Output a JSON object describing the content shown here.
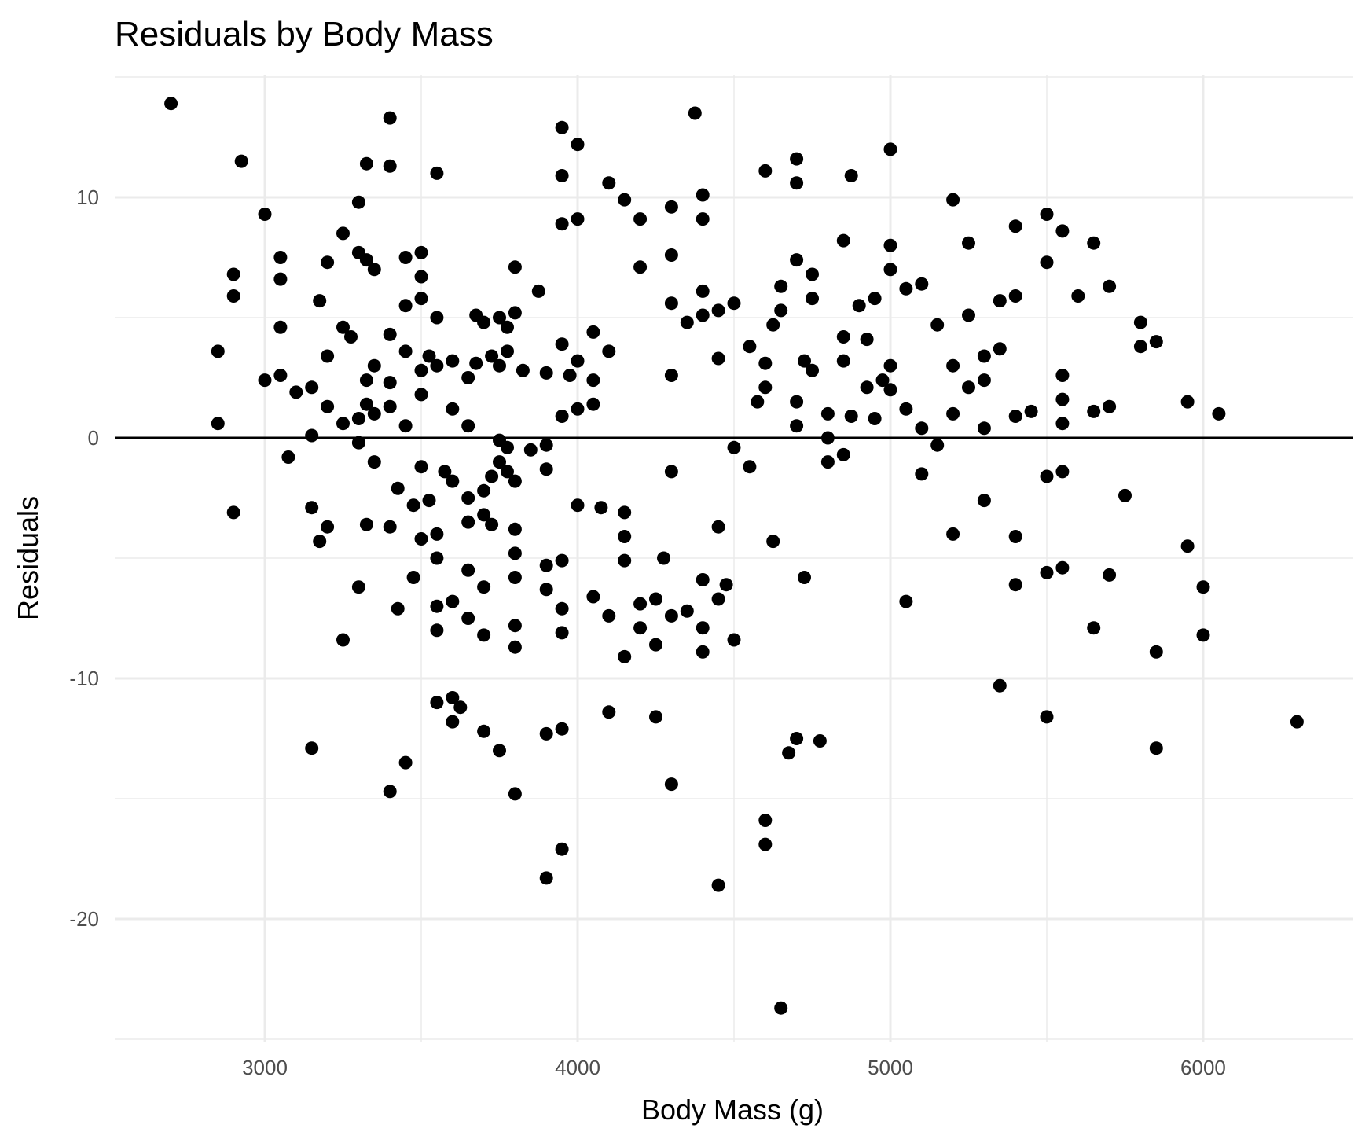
{
  "chart_data": {
    "type": "scatter",
    "title": "Residuals by Body Mass",
    "xlabel": "Body Mass (g)",
    "ylabel": "Residuals",
    "xlim": [
      2520,
      6480
    ],
    "ylim": [
      -25.1,
      15.1
    ],
    "x_ticks": [
      3000,
      4000,
      5000,
      6000
    ],
    "x_tick_labels": [
      "3000",
      "4000",
      "5000",
      "6000"
    ],
    "x_minor_ticks": [
      3500,
      4500,
      5500
    ],
    "y_ticks": [
      -20,
      -10,
      0,
      10
    ],
    "y_tick_labels": [
      "-20",
      "-10",
      "0",
      "10"
    ],
    "y_minor_ticks": [
      -25,
      -15,
      -5,
      5,
      15
    ],
    "grid": true,
    "reference_line_y": 0,
    "points": [
      [
        2700,
        13.9
      ],
      [
        2850,
        3.6
      ],
      [
        2850,
        0.6
      ],
      [
        2900,
        6.8
      ],
      [
        2900,
        5.9
      ],
      [
        2900,
        -3.1
      ],
      [
        2925,
        11.5
      ],
      [
        3000,
        9.3
      ],
      [
        3000,
        2.4
      ],
      [
        3050,
        7.5
      ],
      [
        3050,
        6.6
      ],
      [
        3050,
        4.6
      ],
      [
        3050,
        2.6
      ],
      [
        3075,
        -0.8
      ],
      [
        3100,
        1.9
      ],
      [
        3150,
        2.1
      ],
      [
        3150,
        0.1
      ],
      [
        3150,
        -2.9
      ],
      [
        3150,
        -12.9
      ],
      [
        3175,
        5.7
      ],
      [
        3175,
        -4.3
      ],
      [
        3200,
        7.3
      ],
      [
        3200,
        3.4
      ],
      [
        3200,
        1.3
      ],
      [
        3200,
        -3.7
      ],
      [
        3250,
        8.5
      ],
      [
        3250,
        4.6
      ],
      [
        3250,
        0.6
      ],
      [
        3250,
        -8.4
      ],
      [
        3275,
        4.2
      ],
      [
        3300,
        9.8
      ],
      [
        3300,
        7.7
      ],
      [
        3300,
        0.8
      ],
      [
        3300,
        -0.2
      ],
      [
        3300,
        -6.2
      ],
      [
        3325,
        11.4
      ],
      [
        3325,
        7.4
      ],
      [
        3325,
        2.4
      ],
      [
        3325,
        1.4
      ],
      [
        3325,
        -3.6
      ],
      [
        3350,
        7.0
      ],
      [
        3350,
        3.0
      ],
      [
        3350,
        1.0
      ],
      [
        3350,
        -1.0
      ],
      [
        3400,
        13.3
      ],
      [
        3400,
        11.3
      ],
      [
        3400,
        4.3
      ],
      [
        3400,
        2.3
      ],
      [
        3400,
        1.3
      ],
      [
        3400,
        -3.7
      ],
      [
        3400,
        -14.7
      ],
      [
        3425,
        -2.1
      ],
      [
        3425,
        -7.1
      ],
      [
        3450,
        7.5
      ],
      [
        3450,
        5.5
      ],
      [
        3450,
        3.6
      ],
      [
        3450,
        0.5
      ],
      [
        3450,
        -13.5
      ],
      [
        3475,
        -2.8
      ],
      [
        3475,
        -5.8
      ],
      [
        3500,
        7.7
      ],
      [
        3500,
        6.7
      ],
      [
        3500,
        5.8
      ],
      [
        3500,
        2.8
      ],
      [
        3500,
        1.8
      ],
      [
        3500,
        -1.2
      ],
      [
        3500,
        -4.2
      ],
      [
        3525,
        3.4
      ],
      [
        3525,
        -2.6
      ],
      [
        3550,
        11.0
      ],
      [
        3550,
        5.0
      ],
      [
        3550,
        3.0
      ],
      [
        3550,
        -4.0
      ],
      [
        3550,
        -5.0
      ],
      [
        3550,
        -7.0
      ],
      [
        3550,
        -8.0
      ],
      [
        3550,
        -11.0
      ],
      [
        3575,
        -1.4
      ],
      [
        3600,
        3.2
      ],
      [
        3600,
        1.2
      ],
      [
        3600,
        -1.8
      ],
      [
        3600,
        -6.8
      ],
      [
        3600,
        -10.8
      ],
      [
        3600,
        -11.8
      ],
      [
        3625,
        -11.2
      ],
      [
        3650,
        2.5
      ],
      [
        3650,
        0.5
      ],
      [
        3650,
        -2.5
      ],
      [
        3650,
        -3.5
      ],
      [
        3650,
        -5.5
      ],
      [
        3650,
        -7.5
      ],
      [
        3675,
        5.1
      ],
      [
        3675,
        3.1
      ],
      [
        3700,
        4.8
      ],
      [
        3700,
        -2.2
      ],
      [
        3700,
        -3.2
      ],
      [
        3700,
        -6.2
      ],
      [
        3700,
        -8.2
      ],
      [
        3700,
        -12.2
      ],
      [
        3725,
        3.4
      ],
      [
        3725,
        -1.6
      ],
      [
        3725,
        -3.6
      ],
      [
        3750,
        5.0
      ],
      [
        3750,
        3.0
      ],
      [
        3750,
        -0.1
      ],
      [
        3750,
        -1.0
      ],
      [
        3750,
        -13.0
      ],
      [
        3775,
        4.6
      ],
      [
        3775,
        3.6
      ],
      [
        3775,
        -0.4
      ],
      [
        3775,
        -1.4
      ],
      [
        3800,
        7.1
      ],
      [
        3800,
        5.2
      ],
      [
        3800,
        -1.8
      ],
      [
        3800,
        -3.8
      ],
      [
        3800,
        -4.8
      ],
      [
        3800,
        -5.8
      ],
      [
        3800,
        -7.8
      ],
      [
        3800,
        -8.7
      ],
      [
        3800,
        -14.8
      ],
      [
        3825,
        2.8
      ],
      [
        3850,
        -0.5
      ],
      [
        3875,
        6.1
      ],
      [
        3900,
        2.7
      ],
      [
        3900,
        -0.3
      ],
      [
        3900,
        -1.3
      ],
      [
        3900,
        -5.3
      ],
      [
        3900,
        -6.3
      ],
      [
        3900,
        -12.3
      ],
      [
        3900,
        -18.3
      ],
      [
        3950,
        12.9
      ],
      [
        3950,
        10.9
      ],
      [
        3950,
        8.9
      ],
      [
        3950,
        3.9
      ],
      [
        3950,
        0.9
      ],
      [
        3950,
        -5.1
      ],
      [
        3950,
        -7.1
      ],
      [
        3950,
        -8.1
      ],
      [
        3950,
        -12.1
      ],
      [
        3950,
        -17.1
      ],
      [
        3975,
        2.6
      ],
      [
        4000,
        12.2
      ],
      [
        4000,
        9.1
      ],
      [
        4000,
        3.2
      ],
      [
        4000,
        1.2
      ],
      [
        4000,
        -2.8
      ],
      [
        4050,
        4.4
      ],
      [
        4050,
        2.4
      ],
      [
        4050,
        1.4
      ],
      [
        4050,
        -6.6
      ],
      [
        4075,
        -2.9
      ],
      [
        4100,
        10.6
      ],
      [
        4100,
        3.6
      ],
      [
        4100,
        -7.4
      ],
      [
        4100,
        -11.4
      ],
      [
        4150,
        9.9
      ],
      [
        4150,
        -3.1
      ],
      [
        4150,
        -4.1
      ],
      [
        4150,
        -5.1
      ],
      [
        4150,
        -9.1
      ],
      [
        4200,
        9.1
      ],
      [
        4200,
        7.1
      ],
      [
        4200,
        -6.9
      ],
      [
        4200,
        -7.9
      ],
      [
        4250,
        -6.7
      ],
      [
        4250,
        -8.6
      ],
      [
        4250,
        -11.6
      ],
      [
        4275,
        -5.0
      ],
      [
        4300,
        9.6
      ],
      [
        4300,
        7.6
      ],
      [
        4300,
        5.6
      ],
      [
        4300,
        2.6
      ],
      [
        4300,
        -1.4
      ],
      [
        4300,
        -7.4
      ],
      [
        4300,
        -14.4
      ],
      [
        4350,
        4.8
      ],
      [
        4350,
        -7.2
      ],
      [
        4375,
        13.5
      ],
      [
        4400,
        10.1
      ],
      [
        4400,
        9.1
      ],
      [
        4400,
        6.1
      ],
      [
        4400,
        5.1
      ],
      [
        4400,
        -5.9
      ],
      [
        4400,
        -7.9
      ],
      [
        4400,
        -8.9
      ],
      [
        4450,
        5.3
      ],
      [
        4450,
        3.3
      ],
      [
        4450,
        -3.7
      ],
      [
        4450,
        -6.7
      ],
      [
        4450,
        -18.6
      ],
      [
        4475,
        -6.1
      ],
      [
        4500,
        5.6
      ],
      [
        4500,
        -0.4
      ],
      [
        4500,
        -8.4
      ],
      [
        4550,
        3.8
      ],
      [
        4550,
        -1.2
      ],
      [
        4575,
        1.5
      ],
      [
        4600,
        11.1
      ],
      [
        4600,
        3.1
      ],
      [
        4600,
        2.1
      ],
      [
        4600,
        -15.9
      ],
      [
        4600,
        -16.9
      ],
      [
        4625,
        4.7
      ],
      [
        4625,
        -4.3
      ],
      [
        4650,
        6.3
      ],
      [
        4650,
        5.3
      ],
      [
        4650,
        -23.7
      ],
      [
        4675,
        -13.1
      ],
      [
        4700,
        11.6
      ],
      [
        4700,
        10.6
      ],
      [
        4700,
        7.4
      ],
      [
        4700,
        1.5
      ],
      [
        4700,
        0.5
      ],
      [
        4700,
        -12.5
      ],
      [
        4725,
        3.2
      ],
      [
        4725,
        -5.8
      ],
      [
        4750,
        6.8
      ],
      [
        4750,
        5.8
      ],
      [
        4750,
        2.8
      ],
      [
        4775,
        -12.6
      ],
      [
        4800,
        1.0
      ],
      [
        4800,
        0.0
      ],
      [
        4800,
        -1.0
      ],
      [
        4850,
        8.2
      ],
      [
        4850,
        4.2
      ],
      [
        4850,
        3.2
      ],
      [
        4850,
        -0.7
      ],
      [
        4875,
        10.9
      ],
      [
        4875,
        0.9
      ],
      [
        4900,
        5.5
      ],
      [
        4925,
        4.1
      ],
      [
        4925,
        2.1
      ],
      [
        4950,
        5.8
      ],
      [
        4950,
        0.8
      ],
      [
        4975,
        2.4
      ],
      [
        5000,
        12.0
      ],
      [
        5000,
        8.0
      ],
      [
        5000,
        7.0
      ],
      [
        5000,
        3.0
      ],
      [
        5000,
        2.0
      ],
      [
        5050,
        6.2
      ],
      [
        5050,
        1.2
      ],
      [
        5050,
        -6.8
      ],
      [
        5100,
        6.4
      ],
      [
        5100,
        0.4
      ],
      [
        5100,
        -1.5
      ],
      [
        5150,
        4.7
      ],
      [
        5150,
        -0.3
      ],
      [
        5200,
        9.9
      ],
      [
        5200,
        3.0
      ],
      [
        5200,
        1.0
      ],
      [
        5200,
        -4.0
      ],
      [
        5250,
        8.1
      ],
      [
        5250,
        5.1
      ],
      [
        5250,
        2.1
      ],
      [
        5300,
        3.4
      ],
      [
        5300,
        2.4
      ],
      [
        5300,
        0.4
      ],
      [
        5300,
        -2.6
      ],
      [
        5350,
        5.7
      ],
      [
        5350,
        3.7
      ],
      [
        5350,
        -10.3
      ],
      [
        5400,
        8.8
      ],
      [
        5400,
        5.9
      ],
      [
        5400,
        0.9
      ],
      [
        5400,
        -4.1
      ],
      [
        5400,
        -6.1
      ],
      [
        5450,
        1.1
      ],
      [
        5500,
        9.3
      ],
      [
        5500,
        7.3
      ],
      [
        5500,
        -1.6
      ],
      [
        5500,
        -5.6
      ],
      [
        5500,
        -11.6
      ],
      [
        5550,
        8.6
      ],
      [
        5550,
        2.6
      ],
      [
        5550,
        1.6
      ],
      [
        5550,
        0.6
      ],
      [
        5550,
        -1.4
      ],
      [
        5550,
        -5.4
      ],
      [
        5600,
        5.9
      ],
      [
        5650,
        8.1
      ],
      [
        5650,
        1.1
      ],
      [
        5650,
        -7.9
      ],
      [
        5700,
        6.3
      ],
      [
        5700,
        1.3
      ],
      [
        5700,
        -5.7
      ],
      [
        5750,
        -2.4
      ],
      [
        5800,
        4.8
      ],
      [
        5800,
        3.8
      ],
      [
        5850,
        4.0
      ],
      [
        5850,
        -8.9
      ],
      [
        5850,
        -12.9
      ],
      [
        5950,
        1.5
      ],
      [
        5950,
        -4.5
      ],
      [
        6000,
        -6.2
      ],
      [
        6000,
        -8.2
      ],
      [
        6050,
        1.0
      ],
      [
        6300,
        -11.8
      ]
    ]
  }
}
